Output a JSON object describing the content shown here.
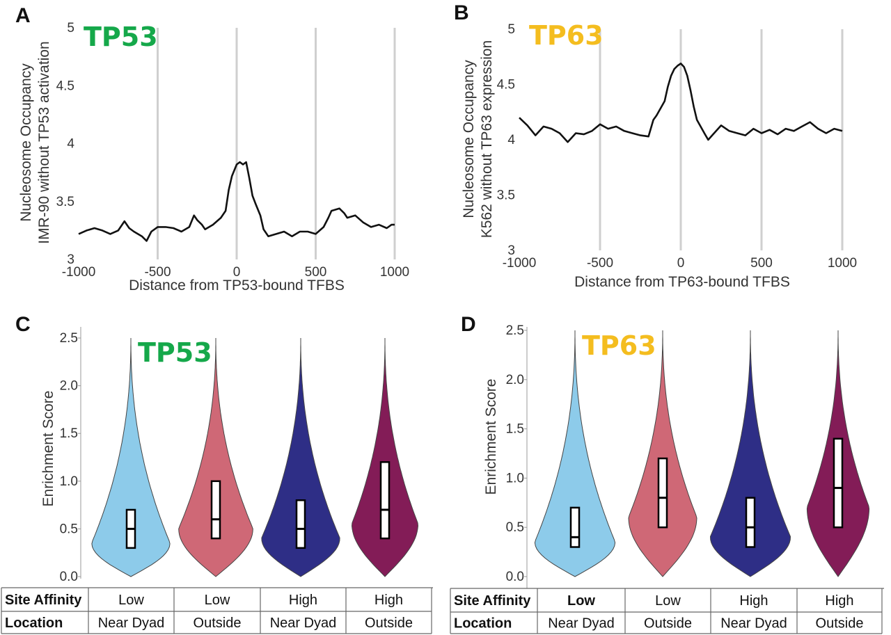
{
  "colors": {
    "tp53": "#15a84a",
    "tp63": "#f4bd1f",
    "grid": "#cfcfcf",
    "line": "#111111",
    "low_near_dyad": "#8dcbea",
    "low_outside": "#cf6876",
    "high_near_dyad": "#2e2e86",
    "high_outside": "#831c57"
  },
  "chart_data": [
    {
      "type": "line",
      "panel": "A",
      "gene_label": "TP53",
      "xlabel": "Distance from TP53-bound TFBS",
      "ylabel_lines": [
        "Nucleosome Occupancy",
        "IMR-90 without TP53 activation"
      ],
      "xlim": [
        -1000,
        1000
      ],
      "ylim": [
        3,
        5
      ],
      "xticks": [
        "-1000",
        "-500",
        "0",
        "500",
        "1000"
      ],
      "yticks": [
        "3",
        "3.5",
        "4",
        "4.5",
        "5"
      ],
      "gridlines_x": [
        -500,
        0,
        500,
        1000
      ],
      "x": [
        -1000,
        -950,
        -900,
        -850,
        -800,
        -750,
        -710,
        -680,
        -650,
        -600,
        -570,
        -540,
        -500,
        -450,
        -400,
        -350,
        -300,
        -270,
        -250,
        -220,
        -200,
        -150,
        -100,
        -70,
        -50,
        -30,
        0,
        20,
        40,
        60,
        80,
        100,
        120,
        150,
        170,
        200,
        250,
        300,
        350,
        400,
        450,
        500,
        550,
        580,
        600,
        650,
        680,
        700,
        750,
        800,
        850,
        900,
        950,
        980,
        1000
      ],
      "y": [
        3.22,
        3.25,
        3.27,
        3.25,
        3.22,
        3.25,
        3.33,
        3.27,
        3.24,
        3.2,
        3.16,
        3.24,
        3.28,
        3.28,
        3.27,
        3.24,
        3.28,
        3.38,
        3.34,
        3.3,
        3.26,
        3.3,
        3.36,
        3.42,
        3.6,
        3.72,
        3.82,
        3.84,
        3.82,
        3.84,
        3.7,
        3.55,
        3.48,
        3.38,
        3.26,
        3.2,
        3.22,
        3.24,
        3.2,
        3.24,
        3.24,
        3.22,
        3.28,
        3.36,
        3.42,
        3.44,
        3.4,
        3.36,
        3.38,
        3.32,
        3.28,
        3.3,
        3.27,
        3.3,
        3.3
      ]
    },
    {
      "type": "line",
      "panel": "B",
      "gene_label": "TP63",
      "xlabel": "Distance from TP63-bound TFBS",
      "ylabel_lines": [
        "Nucleosome Occupancy",
        "K562  without TP63 expression"
      ],
      "xlim": [
        -1000,
        1000
      ],
      "ylim": [
        3,
        5
      ],
      "xticks": [
        "-1000",
        "-500",
        "0",
        "500",
        "1000"
      ],
      "yticks": [
        "3",
        "3.5",
        "4",
        "4.5",
        "5"
      ],
      "gridlines_x": [
        -500,
        0,
        500,
        1000
      ],
      "x": [
        -1000,
        -950,
        -900,
        -850,
        -800,
        -750,
        -700,
        -650,
        -600,
        -550,
        -500,
        -450,
        -400,
        -350,
        -300,
        -250,
        -200,
        -170,
        -150,
        -100,
        -80,
        -60,
        -40,
        -20,
        0,
        20,
        40,
        60,
        80,
        100,
        150,
        170,
        200,
        250,
        300,
        350,
        400,
        450,
        500,
        550,
        600,
        650,
        700,
        750,
        800,
        850,
        900,
        950,
        1000
      ],
      "y": [
        4.2,
        4.13,
        4.04,
        4.12,
        4.1,
        4.06,
        3.98,
        4.06,
        4.05,
        4.08,
        4.14,
        4.1,
        4.12,
        4.08,
        4.06,
        4.04,
        4.03,
        4.18,
        4.22,
        4.35,
        4.48,
        4.58,
        4.64,
        4.67,
        4.69,
        4.66,
        4.58,
        4.45,
        4.3,
        4.18,
        4.05,
        4.0,
        4.05,
        4.13,
        4.08,
        4.06,
        4.04,
        4.1,
        4.06,
        4.09,
        4.05,
        4.1,
        4.08,
        4.12,
        4.16,
        4.1,
        4.06,
        4.1,
        4.08
      ]
    },
    {
      "type": "violin",
      "panel": "C",
      "gene_label": "TP53",
      "ylabel": "Enrichment Score",
      "ylim": [
        0,
        2.5
      ],
      "yticks": [
        "0.0",
        "0.5",
        "1.0",
        "1.5",
        "2.0",
        "2.5"
      ],
      "groups": [
        {
          "affinity": "Low",
          "location": "Near Dyad",
          "color_key": "low_near_dyad",
          "q1": 0.3,
          "median": 0.5,
          "q3": 0.7,
          "max": 2.5,
          "peak": 0.35,
          "peak_width": 0.78
        },
        {
          "affinity": "Low",
          "location": "Outside",
          "color_key": "low_outside",
          "q1": 0.4,
          "median": 0.6,
          "q3": 1.0,
          "max": 2.5,
          "peak": 0.5,
          "peak_width": 0.74
        },
        {
          "affinity": "High",
          "location": "Near Dyad",
          "color_key": "high_near_dyad",
          "q1": 0.3,
          "median": 0.5,
          "q3": 0.8,
          "max": 2.5,
          "peak": 0.4,
          "peak_width": 0.78
        },
        {
          "affinity": "High",
          "location": "Outside",
          "color_key": "high_outside",
          "q1": 0.4,
          "median": 0.7,
          "q3": 1.2,
          "max": 2.5,
          "peak": 0.55,
          "peak_width": 0.66
        }
      ],
      "table": {
        "row_headers": [
          "Site Affinity",
          "Location"
        ],
        "affinity": [
          "Low",
          "Low",
          "High",
          "High"
        ],
        "location": [
          "Near Dyad",
          "Outside",
          "Near Dyad",
          "Outside"
        ]
      }
    },
    {
      "type": "violin",
      "panel": "D",
      "gene_label": "TP63",
      "ylabel": "Enrichment Score",
      "ylim": [
        0,
        2.5
      ],
      "yticks": [
        "0.0",
        "0.5",
        "1.0",
        "1.5",
        "2.0",
        "2.5"
      ],
      "groups": [
        {
          "affinity": "Low",
          "location": "Near Dyad",
          "color_key": "low_near_dyad",
          "q1": 0.3,
          "median": 0.4,
          "q3": 0.7,
          "max": 2.5,
          "peak": 0.35,
          "peak_width": 0.8
        },
        {
          "affinity": "Low",
          "location": "Outside",
          "color_key": "low_outside",
          "q1": 0.5,
          "median": 0.8,
          "q3": 1.2,
          "max": 2.5,
          "peak": 0.6,
          "peak_width": 0.68
        },
        {
          "affinity": "High",
          "location": "Near Dyad",
          "color_key": "high_near_dyad",
          "q1": 0.3,
          "median": 0.5,
          "q3": 0.8,
          "max": 2.5,
          "peak": 0.4,
          "peak_width": 0.8
        },
        {
          "affinity": "High",
          "location": "Outside",
          "color_key": "high_outside",
          "q1": 0.5,
          "median": 0.9,
          "q3": 1.4,
          "max": 2.5,
          "peak": 0.7,
          "peak_width": 0.62
        }
      ],
      "table": {
        "row_headers": [
          "Site Affinity",
          "Location"
        ],
        "affinity": [
          "Low",
          "Low",
          "High",
          "High"
        ],
        "location": [
          "Near Dyad",
          "Outside",
          "Near Dyad",
          "Outside"
        ]
      }
    }
  ]
}
